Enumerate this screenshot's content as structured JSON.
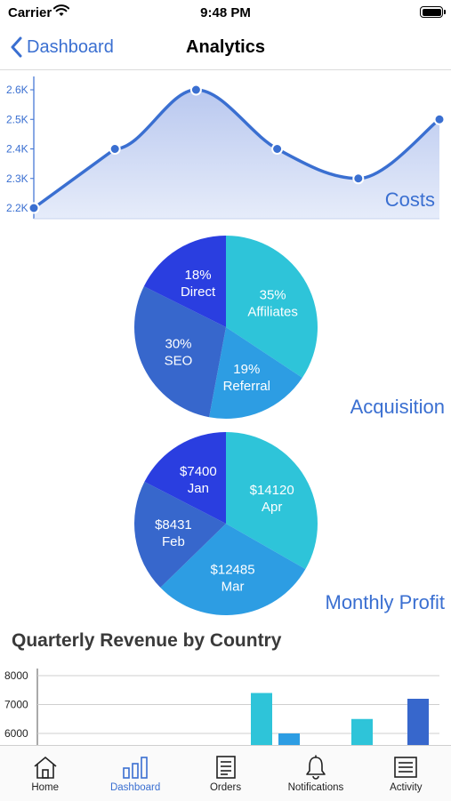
{
  "status": {
    "carrier": "Carrier",
    "time": "9:48 PM"
  },
  "nav": {
    "back_label": "Dashboard",
    "title": "Analytics"
  },
  "chart_data": [
    {
      "type": "area",
      "title": "Costs",
      "yticks": [
        "2.2K",
        "2.3K",
        "2.4K",
        "2.5K",
        "2.6K"
      ],
      "ylim": [
        2200,
        2600
      ],
      "values": [
        2200,
        2400,
        2600,
        2400,
        2300,
        2500
      ],
      "color": "#3a6fd1"
    },
    {
      "type": "pie",
      "title": "Acquisition",
      "slices": [
        {
          "pct": "35%",
          "label": "Affiliates",
          "value": 35,
          "color": "#2ec4d9"
        },
        {
          "pct": "19%",
          "label": "Referral",
          "value": 19,
          "color": "#2d9de3"
        },
        {
          "pct": "30%",
          "label": "SEO",
          "value": 30,
          "color": "#3767cc"
        },
        {
          "pct": "18%",
          "label": "Direct",
          "value": 18,
          "color": "#2a3ee0"
        }
      ]
    },
    {
      "type": "pie",
      "title": "Monthly Profit",
      "slices": [
        {
          "pct": "$14120",
          "label": "Apr",
          "value": 14120,
          "color": "#2ec4d9"
        },
        {
          "pct": "$12485",
          "label": "Mar",
          "value": 12485,
          "color": "#2d9de3"
        },
        {
          "pct": "$8431",
          "label": "Feb",
          "value": 8431,
          "color": "#3767cc"
        },
        {
          "pct": "$7400",
          "label": "Jan",
          "value": 7400,
          "color": "#2a3ee0"
        }
      ]
    },
    {
      "type": "bar",
      "title": "Quarterly Revenue by Country",
      "yticks": [
        "6000",
        "7000",
        "8000"
      ],
      "ylim": [
        5600,
        8000
      ],
      "bars": [
        {
          "value": 7400,
          "color": "#2ec4d9"
        },
        {
          "value": 6000,
          "color": "#2d9de3"
        },
        {
          "value": 6500,
          "color": "#2ec4d9"
        },
        {
          "value": 7200,
          "color": "#3767cc"
        }
      ]
    }
  ],
  "tabs": [
    {
      "label": "Home",
      "icon": "home-icon"
    },
    {
      "label": "Dashboard",
      "icon": "bar-chart-icon"
    },
    {
      "label": "Orders",
      "icon": "document-icon"
    },
    {
      "label": "Notifications",
      "icon": "bell-icon"
    },
    {
      "label": "Activity",
      "icon": "list-icon"
    }
  ]
}
